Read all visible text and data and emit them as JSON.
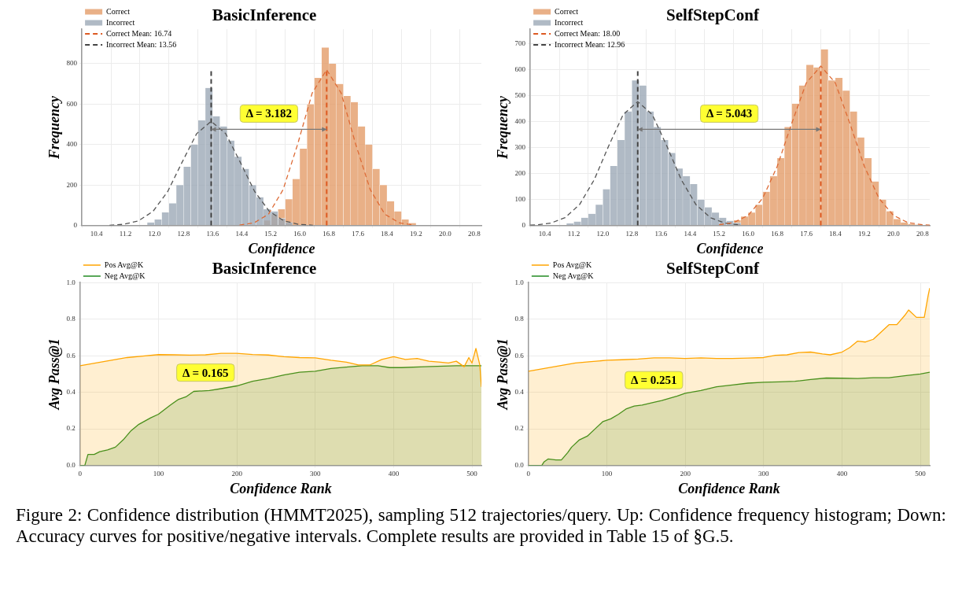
{
  "chart_data": [
    {
      "type": "histogram",
      "title": "BasicInference",
      "xlabel": "Confidence",
      "ylabel": "Frequency",
      "xlim": [
        10.0,
        21.0
      ],
      "ylim": [
        0,
        970
      ],
      "xticks": [
        10.4,
        11.2,
        {
          "value": 12,
          "label": "12.0"
        },
        12.8,
        13.6,
        14.4,
        15.2,
        {
          "value": 16,
          "label": "16.0"
        },
        16.8,
        17.6,
        18.4,
        19.2,
        {
          "value": 20,
          "label": "20.0"
        },
        20.8
      ],
      "yticks": [
        0,
        200,
        400,
        600,
        800
      ],
      "grid": true,
      "legend": "top left",
      "marker": "none",
      "series": [
        {
          "name": "Correct",
          "color": "#e39a66",
          "bins": [
            15.0,
            15.2,
            15.4,
            15.6,
            15.8,
            16.0,
            16.2,
            16.4,
            16.6,
            16.8,
            17.0,
            17.2,
            17.4,
            17.6,
            17.8,
            18.0,
            18.2,
            18.4,
            18.6,
            18.8,
            19.0,
            19.2,
            19.4
          ],
          "values": [
            25,
            55,
            80,
            130,
            230,
            380,
            600,
            730,
            880,
            800,
            700,
            640,
            610,
            490,
            400,
            280,
            200,
            120,
            70,
            30,
            12,
            null
          ]
        },
        {
          "name": "Incorrect",
          "color": "#9aa7b5",
          "bins": [
            11.8,
            12.0,
            12.2,
            12.4,
            12.6,
            12.8,
            13.0,
            13.2,
            13.4,
            13.6,
            13.8,
            14.0,
            14.2,
            14.4,
            14.6,
            14.8,
            15.0,
            15.2,
            15.4,
            15.6,
            15.8
          ],
          "values": [
            15,
            30,
            65,
            110,
            200,
            290,
            400,
            520,
            680,
            540,
            490,
            420,
            340,
            280,
            200,
            140,
            80,
            70,
            35,
            15
          ]
        },
        {
          "type": "line",
          "line_style": "dashed",
          "color": "#dd6a35",
          "x": [
            14.34,
            14.74,
            15.14,
            15.54,
            15.94,
            16.34,
            16.74,
            17.14,
            17.54,
            17.94,
            18.34,
            18.74,
            19.14
          ],
          "values": [
            2,
            13,
            56,
            177,
            401,
            654,
            770,
            654,
            401,
            177,
            56,
            13,
            2
          ]
        },
        {
          "type": "line",
          "line_style": "dashed",
          "color": "#555555",
          "x": [
            10.76,
            11.16,
            11.56,
            11.96,
            12.36,
            12.76,
            13.16,
            13.56,
            13.96,
            14.36,
            14.76,
            15.16,
            15.56,
            15.96,
            16.36
          ],
          "values": [
            1,
            6,
            23,
            70,
            167,
            313,
            454,
            515,
            454,
            313,
            167,
            70,
            23,
            6,
            1
          ]
        }
      ],
      "ref_lines": [
        {
          "axis": "x",
          "value": 16.74,
          "label": "Correct Mean: 16.74",
          "color": "#dd5a22",
          "line_style": "dashed"
        },
        {
          "axis": "x",
          "value": 13.56,
          "label": "Incorrect Mean: 13.56",
          "color": "#444444",
          "line_style": "dashed"
        }
      ],
      "annotations": [
        "Δ = 3.182"
      ]
    },
    {
      "type": "histogram",
      "title": "SelfStepConf",
      "xlabel": "Confidence",
      "ylabel": "Frequency",
      "xlim": [
        10.0,
        21.0
      ],
      "ylim": [
        0,
        757
      ],
      "xticks": [
        10.4,
        11.2,
        {
          "value": 12,
          "label": "12.0"
        },
        12.8,
        13.6,
        14.4,
        15.2,
        {
          "value": 16,
          "label": "16.0"
        },
        16.8,
        17.6,
        18.4,
        19.2,
        {
          "value": 20,
          "label": "20.0"
        },
        20.8
      ],
      "yticks": [
        0,
        100,
        200,
        300,
        400,
        500,
        600,
        700
      ],
      "grid": true,
      "legend": "top left",
      "marker": "none",
      "series": [
        {
          "name": "Correct",
          "color": "#e39a66",
          "bins": [
            15.4,
            15.6,
            15.8,
            16.0,
            16.2,
            16.4,
            16.6,
            16.8,
            17.0,
            17.2,
            17.4,
            17.6,
            17.8,
            18.0,
            18.2,
            18.4,
            18.6,
            18.8,
            19.0,
            19.2,
            19.4,
            19.6,
            19.8,
            20.0,
            20.2,
            20.4,
            20.6,
            20.8
          ],
          "values": [
            null,
            20,
            35,
            50,
            80,
            130,
            190,
            260,
            380,
            470,
            540,
            620,
            610,
            680,
            560,
            570,
            520,
            440,
            340,
            260,
            170,
            100,
            55,
            25,
            12,
            6,
            3
          ]
        },
        {
          "name": "Incorrect",
          "color": "#9aa7b5",
          "bins": [
            10.8,
            11.0,
            11.2,
            11.4,
            11.6,
            11.8,
            12.0,
            12.2,
            12.4,
            12.6,
            12.8,
            13.0,
            13.2,
            13.4,
            13.6,
            13.8,
            14.0,
            14.2,
            14.4,
            14.6,
            14.8,
            15.0,
            15.2,
            15.4,
            15.6,
            15.8,
            16.0
          ],
          "values": [
            null,
            8,
            15,
            30,
            45,
            80,
            140,
            230,
            330,
            440,
            560,
            540,
            440,
            380,
            330,
            280,
            220,
            190,
            160,
            100,
            70,
            50,
            30,
            18,
            10,
            null
          ]
        },
        {
          "type": "line",
          "line_style": "dashed",
          "color": "#dd6a35",
          "x": [
            15.2,
            15.6,
            16.0,
            16.4,
            16.8,
            17.2,
            17.6,
            18.0,
            18.4,
            18.8,
            19.2,
            19.6,
            20.0,
            20.4,
            20.8,
            21.0
          ],
          "values": [
            3,
            11,
            39,
            105,
            228,
            394,
            550,
            615,
            550,
            394,
            228,
            105,
            39,
            11,
            3,
            1
          ]
        },
        {
          "type": "line",
          "line_style": "dashed",
          "color": "#555555",
          "x": [
            10.0,
            10.16,
            10.56,
            10.96,
            11.36,
            11.76,
            12.16,
            12.56,
            12.96,
            13.36,
            13.76,
            14.16,
            14.56,
            14.96,
            15.36,
            15.76
          ],
          "values": [
            1,
            2,
            9,
            30,
            81,
            176,
            307,
            428,
            478,
            428,
            307,
            176,
            81,
            30,
            9,
            2
          ]
        }
      ],
      "ref_lines": [
        {
          "axis": "x",
          "value": 18.0,
          "label": "Correct Mean: 18.00",
          "color": "#dd5a22",
          "line_style": "dashed"
        },
        {
          "axis": "x",
          "value": 12.96,
          "label": "Incorrect Mean: 12.96",
          "color": "#444444",
          "line_style": "dashed"
        }
      ],
      "annotations": [
        "Δ = 5.043"
      ]
    },
    {
      "type": "area",
      "title": "BasicInference",
      "xlabel": "Confidence Rank",
      "ylabel": "Avg Pass@1",
      "xlim": [
        0,
        512
      ],
      "ylim": [
        0,
        1.0
      ],
      "xticks": [
        0,
        100,
        200,
        300,
        400,
        500
      ],
      "yticks": [
        {
          "value": 0,
          "label": "0.0"
        },
        {
          "value": 0.2,
          "label": "0.2"
        },
        {
          "value": 0.4,
          "label": "0.4"
        },
        {
          "value": 0.6,
          "label": "0.6"
        },
        {
          "value": 0.8,
          "label": "0.8"
        },
        {
          "value": 1,
          "label": "1.0"
        }
      ],
      "grid": true,
      "legend": "top left",
      "marker": "none",
      "series": [
        {
          "name": "Pos Avg@K",
          "color": "#ffa500",
          "x": [
            0,
            20,
            40,
            60,
            80,
            100,
            120,
            140,
            160,
            180,
            200,
            220,
            240,
            260,
            280,
            300,
            320,
            340,
            355,
            370,
            385,
            400,
            415,
            430,
            445,
            460,
            470,
            480,
            490,
            496,
            500,
            505,
            510,
            512
          ],
          "values": [
            0.545,
            0.56,
            0.575,
            0.59,
            0.598,
            0.606,
            0.605,
            0.603,
            0.605,
            0.613,
            0.613,
            0.607,
            0.604,
            0.595,
            0.59,
            0.588,
            0.575,
            0.565,
            0.55,
            0.55,
            0.58,
            0.595,
            0.58,
            0.585,
            0.57,
            0.565,
            0.56,
            0.57,
            0.54,
            0.59,
            0.56,
            0.64,
            0.55,
            0.43
          ]
        },
        {
          "name": "Neg Avg@K",
          "color": "#228b22",
          "x": [
            0,
            6,
            10,
            18,
            25,
            35,
            45,
            55,
            65,
            75,
            90,
            100,
            115,
            125,
            135,
            145,
            165,
            180,
            200,
            220,
            240,
            260,
            280,
            300,
            320,
            345,
            360,
            380,
            395,
            410,
            440,
            480,
            512
          ],
          "values": [
            0,
            0,
            0.06,
            0.06,
            0.075,
            0.085,
            0.1,
            0.14,
            0.19,
            0.225,
            0.26,
            0.28,
            0.33,
            0.36,
            0.375,
            0.405,
            0.41,
            0.42,
            0.435,
            0.46,
            0.475,
            0.495,
            0.51,
            0.515,
            0.53,
            0.54,
            0.545,
            0.545,
            0.535,
            0.535,
            0.54,
            0.545,
            0.545
          ]
        }
      ],
      "annotations": [
        "Δ = 0.165"
      ]
    },
    {
      "type": "area",
      "title": "SelfStepConf",
      "xlabel": "Confidence Rank",
      "ylabel": "Avg Pass@1",
      "xlim": [
        0,
        512
      ],
      "ylim": [
        0,
        1.0
      ],
      "xticks": [
        0,
        100,
        200,
        300,
        400,
        500
      ],
      "yticks": [
        {
          "value": 0,
          "label": "0.0"
        },
        {
          "value": 0.2,
          "label": "0.2"
        },
        {
          "value": 0.4,
          "label": "0.4"
        },
        {
          "value": 0.6,
          "label": "0.6"
        },
        {
          "value": 0.8,
          "label": "0.8"
        },
        {
          "value": 1,
          "label": "1.0"
        }
      ],
      "grid": true,
      "legend": "top left",
      "marker": "none",
      "series": [
        {
          "name": "Pos Avg@K",
          "color": "#ffa500",
          "x": [
            0,
            20,
            40,
            60,
            80,
            100,
            120,
            140,
            160,
            180,
            200,
            220,
            240,
            260,
            280,
            300,
            315,
            330,
            345,
            360,
            375,
            385,
            400,
            410,
            420,
            430,
            440,
            450,
            460,
            470,
            480,
            485,
            495,
            505,
            510,
            512
          ],
          "values": [
            0.515,
            0.53,
            0.545,
            0.56,
            0.568,
            0.575,
            0.578,
            0.582,
            0.588,
            0.588,
            0.585,
            0.588,
            0.585,
            0.585,
            0.587,
            0.59,
            0.602,
            0.605,
            0.617,
            0.62,
            0.61,
            0.605,
            0.62,
            0.645,
            0.68,
            0.675,
            0.69,
            0.73,
            0.77,
            0.77,
            0.82,
            0.85,
            0.81,
            0.81,
            0.93,
            0.97
          ]
        },
        {
          "name": "Neg Avg@K",
          "color": "#228b22",
          "x": [
            0,
            17,
            20,
            25,
            35,
            42,
            50,
            55,
            65,
            75,
            85,
            95,
            105,
            115,
            125,
            135,
            145,
            160,
            170,
            190,
            200,
            220,
            240,
            260,
            280,
            300,
            320,
            340,
            360,
            380,
            400,
            420,
            440,
            460,
            480,
            500,
            512
          ],
          "values": [
            0,
            0,
            0.02,
            0.035,
            0.03,
            0.03,
            0.07,
            0.1,
            0.14,
            0.16,
            0.2,
            0.24,
            0.255,
            0.28,
            0.31,
            0.325,
            0.33,
            0.345,
            0.355,
            0.38,
            0.395,
            0.41,
            0.43,
            0.44,
            0.45,
            0.455,
            0.457,
            0.46,
            0.47,
            0.478,
            0.477,
            0.475,
            0.48,
            0.48,
            0.49,
            0.5,
            0.51
          ]
        }
      ],
      "annotations": [
        "Δ = 0.251",
        "Figure 2: Confidence distribution (HMMT2025), sampling 512 trajectories/query. Up: Confidence frequency histogram; Down: Accuracy curves for positive/negative intervals. Complete results are provided in Table 15 of §G.5."
      ]
    }
  ]
}
